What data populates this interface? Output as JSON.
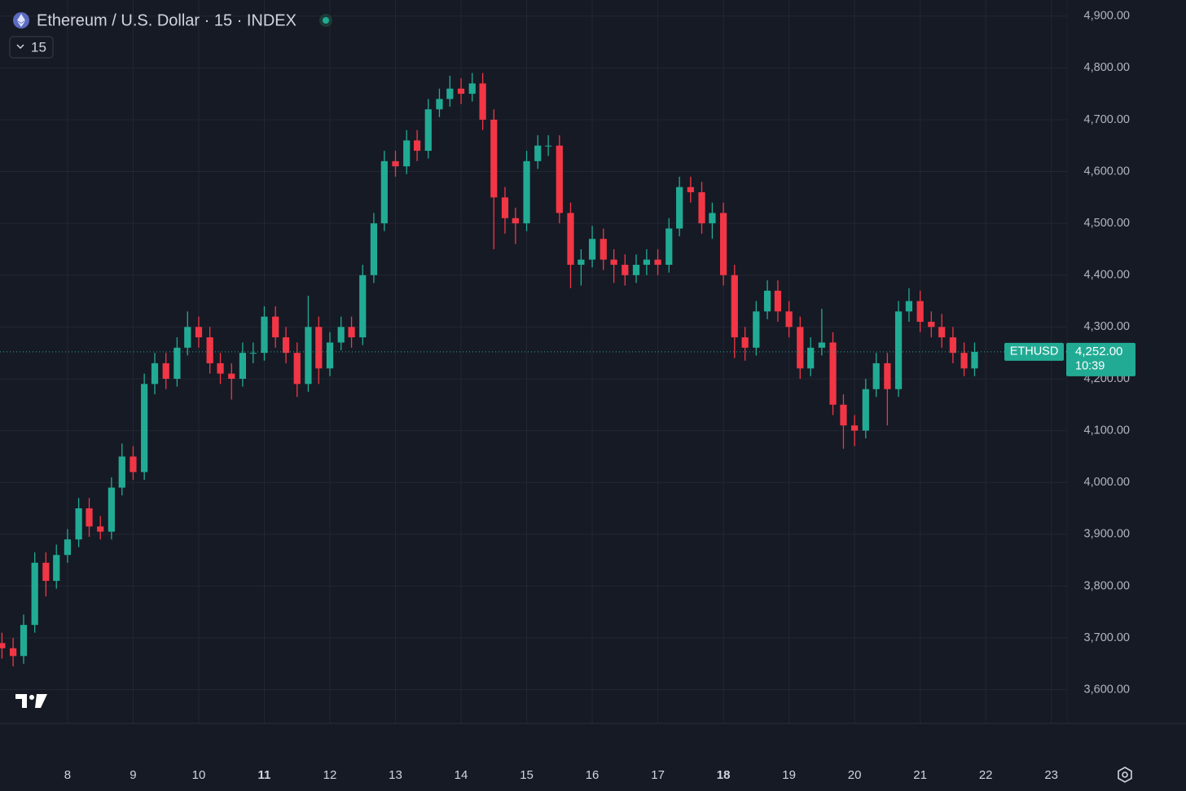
{
  "chart_data": {
    "type": "candlestick",
    "title": "Ethereum / U.S. Dollar · 15 · INDEX",
    "interval": "15",
    "symbol": "ETHUSD",
    "last_price": {
      "value": 4252,
      "label": "4,252.00"
    },
    "countdown": "10:39",
    "up_color": "#22ab94",
    "down_color": "#f23645",
    "grid": true,
    "xlim": [
      6.97,
      23.24
    ],
    "ylim": [
      3535,
      4931
    ],
    "xticks": [
      8,
      9,
      10,
      11,
      12,
      13,
      14,
      15,
      16,
      17,
      18,
      19,
      20,
      21,
      22,
      23
    ],
    "yticks": [
      {
        "value": 3600,
        "label": "3,600.00"
      },
      {
        "value": 3700,
        "label": "3,700.00"
      },
      {
        "value": 3800,
        "label": "3,800.00"
      },
      {
        "value": 3900,
        "label": "3,900.00"
      },
      {
        "value": 4000,
        "label": "4,000.00"
      },
      {
        "value": 4100,
        "label": "4,100.00"
      },
      {
        "value": 4200,
        "label": "4,200.00"
      },
      {
        "value": 4300,
        "label": "4,300.00"
      },
      {
        "value": 4400,
        "label": "4,400.00"
      },
      {
        "value": 4500,
        "label": "4,500.00"
      },
      {
        "value": 4600,
        "label": "4,600.00"
      },
      {
        "value": 4700,
        "label": "4,700.00"
      },
      {
        "value": 4800,
        "label": "4,800.00"
      },
      {
        "value": 4900,
        "label": "4,900.00"
      }
    ],
    "x": [
      7,
      7.17,
      7.33,
      7.5,
      7.67,
      7.83,
      8,
      8.17,
      8.33,
      8.5,
      8.67,
      8.83,
      9,
      9.17,
      9.33,
      9.5,
      9.67,
      9.83,
      10,
      10.17,
      10.33,
      10.5,
      10.67,
      10.83,
      11,
      11.17,
      11.33,
      11.5,
      11.67,
      11.83,
      12,
      12.17,
      12.33,
      12.5,
      12.67,
      12.83,
      13,
      13.17,
      13.33,
      13.5,
      13.67,
      13.83,
      14,
      14.17,
      14.33,
      14.5,
      14.67,
      14.83,
      15,
      15.17,
      15.33,
      15.5,
      15.67,
      15.83,
      16,
      16.17,
      16.33,
      16.5,
      16.67,
      16.83,
      17,
      17.17,
      17.33,
      17.5,
      17.67,
      17.83,
      18,
      18.17,
      18.33,
      18.5,
      18.67,
      18.83,
      19,
      19.17,
      19.33,
      19.5,
      19.67,
      19.83,
      20,
      20.17,
      20.33,
      20.5,
      20.67,
      20.83,
      21,
      21.17,
      21.33,
      21.5,
      21.67,
      21.83
    ],
    "open": [
      3690,
      3680,
      3665,
      3725,
      3845,
      3810,
      3860,
      3890,
      3950,
      3915,
      3905,
      3990,
      4050,
      4020,
      4190,
      4230,
      4200,
      4260,
      4300,
      4280,
      4230,
      4210,
      4200,
      4250,
      4250,
      4320,
      4280,
      4250,
      4190,
      4300,
      4220,
      4270,
      4300,
      4280,
      4400,
      4500,
      4620,
      4610,
      4660,
      4640,
      4720,
      4740,
      4760,
      4750,
      4770,
      4700,
      4550,
      4510,
      4500,
      4620,
      4650,
      4650,
      4520,
      4420,
      4430,
      4470,
      4430,
      4420,
      4400,
      4420,
      4430,
      4420,
      4490,
      4570,
      4560,
      4500,
      4520,
      4400,
      4280,
      4260,
      4330,
      4370,
      4330,
      4300,
      4220,
      4260,
      4270,
      4150,
      4110,
      4100,
      4180,
      4230,
      4180,
      4330,
      4350,
      4310,
      4300,
      4280,
      4250,
      4220
    ],
    "high": [
      3710,
      3700,
      3745,
      3865,
      3865,
      3880,
      3910,
      3970,
      3970,
      3935,
      4010,
      4075,
      4070,
      4210,
      4250,
      4250,
      4280,
      4330,
      4320,
      4300,
      4250,
      4230,
      4270,
      4270,
      4340,
      4340,
      4300,
      4270,
      4360,
      4320,
      4290,
      4320,
      4320,
      4420,
      4520,
      4640,
      4640,
      4680,
      4680,
      4740,
      4760,
      4785,
      4780,
      4790,
      4790,
      4720,
      4570,
      4530,
      4640,
      4670,
      4670,
      4670,
      4540,
      4450,
      4495,
      4490,
      4450,
      4440,
      4440,
      4450,
      4450,
      4510,
      4590,
      4590,
      4580,
      4540,
      4540,
      4420,
      4300,
      4350,
      4390,
      4390,
      4350,
      4320,
      4280,
      4335,
      4290,
      4170,
      4130,
      4200,
      4250,
      4250,
      4350,
      4375,
      4370,
      4330,
      4325,
      4300,
      4270,
      4270
    ],
    "low": [
      3660,
      3645,
      3650,
      3710,
      3780,
      3795,
      3845,
      3875,
      3895,
      3890,
      3890,
      3975,
      4005,
      4005,
      4170,
      4180,
      4185,
      4245,
      4260,
      4210,
      4190,
      4160,
      4185,
      4230,
      4235,
      4260,
      4230,
      4165,
      4175,
      4190,
      4205,
      4255,
      4260,
      4265,
      4385,
      4485,
      4590,
      4595,
      4620,
      4625,
      4705,
      4725,
      4730,
      4735,
      4680,
      4450,
      4480,
      4460,
      4485,
      4605,
      4630,
      4500,
      4375,
      4380,
      4415,
      4410,
      4385,
      4380,
      4385,
      4400,
      4400,
      4405,
      4475,
      4540,
      4480,
      4470,
      4380,
      4240,
      4235,
      4245,
      4315,
      4310,
      4280,
      4200,
      4205,
      4245,
      4130,
      4065,
      4070,
      4085,
      4165,
      4110,
      4165,
      4310,
      4290,
      4280,
      4260,
      4230,
      4205,
      4205
    ],
    "close": [
      3680,
      3665,
      3725,
      3845,
      3810,
      3860,
      3890,
      3950,
      3915,
      3905,
      3990,
      4050,
      4020,
      4190,
      4230,
      4200,
      4260,
      4300,
      4280,
      4230,
      4210,
      4200,
      4250,
      4250,
      4320,
      4280,
      4250,
      4190,
      4300,
      4220,
      4270,
      4300,
      4280,
      4400,
      4500,
      4620,
      4610,
      4660,
      4640,
      4720,
      4740,
      4760,
      4750,
      4770,
      4700,
      4550,
      4510,
      4500,
      4620,
      4650,
      4650,
      4520,
      4420,
      4430,
      4470,
      4430,
      4420,
      4400,
      4420,
      4430,
      4420,
      4490,
      4570,
      4560,
      4500,
      4520,
      4400,
      4280,
      4260,
      4330,
      4370,
      4330,
      4300,
      4220,
      4260,
      4270,
      4150,
      4110,
      4100,
      4180,
      4230,
      4180,
      4330,
      4350,
      4310,
      4300,
      4280,
      4250,
      4220,
      4252
    ]
  }
}
